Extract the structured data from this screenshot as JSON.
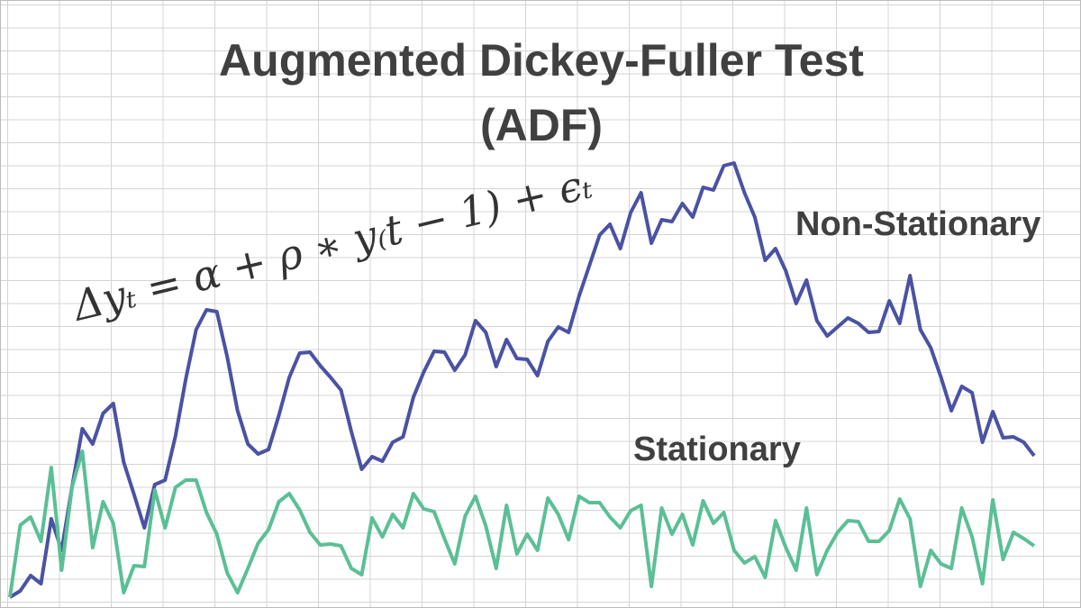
{
  "chart_data": {
    "type": "line",
    "title": "Augmented Dickey-Fuller Test (ADF)",
    "annotation": "Δyₜ = α + ρ ∗ y₍t − 1) + ϵₜ",
    "ylim": [
      0,
      675
    ],
    "series": [
      {
        "name": "Non-Stationary",
        "color": "#4a52a3",
        "values": [
          13,
          20,
          37,
          28,
          100,
          65,
          135,
          200,
          183,
          217,
          228,
          163,
          127,
          90,
          138,
          143,
          192,
          255,
          310,
          332,
          330,
          280,
          220,
          183,
          172,
          177,
          215,
          257,
          284,
          285,
          270,
          257,
          243,
          197,
          155,
          169,
          164,
          185,
          191,
          235,
          263,
          286,
          285,
          265,
          282,
          320,
          307,
          269,
          299,
          278,
          277,
          259,
          297,
          313,
          307,
          347,
          381,
          415,
          427,
          400,
          440,
          462,
          406,
          432,
          430,
          450,
          435,
          468,
          465,
          492,
          495,
          462,
          435,
          387,
          400,
          375,
          339,
          365,
          320,
          303,
          313,
          323,
          317,
          307,
          308,
          342,
          317,
          370,
          310,
          290,
          257,
          220,
          247,
          240,
          185,
          219,
          190,
          191,
          185,
          170
        ]
      },
      {
        "name": "Stationary",
        "color": "#5bbf96",
        "values": [
          13,
          93,
          102,
          75,
          157,
          43,
          135,
          175,
          68,
          119,
          95,
          18,
          48,
          47,
          132,
          90,
          135,
          143,
          143,
          107,
          83,
          40,
          18,
          45,
          73,
          88,
          119,
          128,
          110,
          85,
          71,
          72,
          70,
          45,
          38,
          101,
          80,
          105,
          90,
          128,
          111,
          108,
          78,
          50,
          103,
          125,
          92,
          45,
          115,
          61,
          83,
          65,
          123,
          105,
          77,
          125,
          118,
          118,
          102,
          90,
          109,
          115,
          25,
          112,
          83,
          105,
          71,
          120,
          95,
          107,
          65,
          51,
          58,
          35,
          98,
          68,
          43,
          112,
          38,
          65,
          85,
          98,
          97,
          75,
          75,
          87,
          122,
          100,
          25,
          65,
          50,
          45,
          112,
          80,
          28,
          121,
          55,
          85,
          78,
          70
        ]
      }
    ]
  }
}
